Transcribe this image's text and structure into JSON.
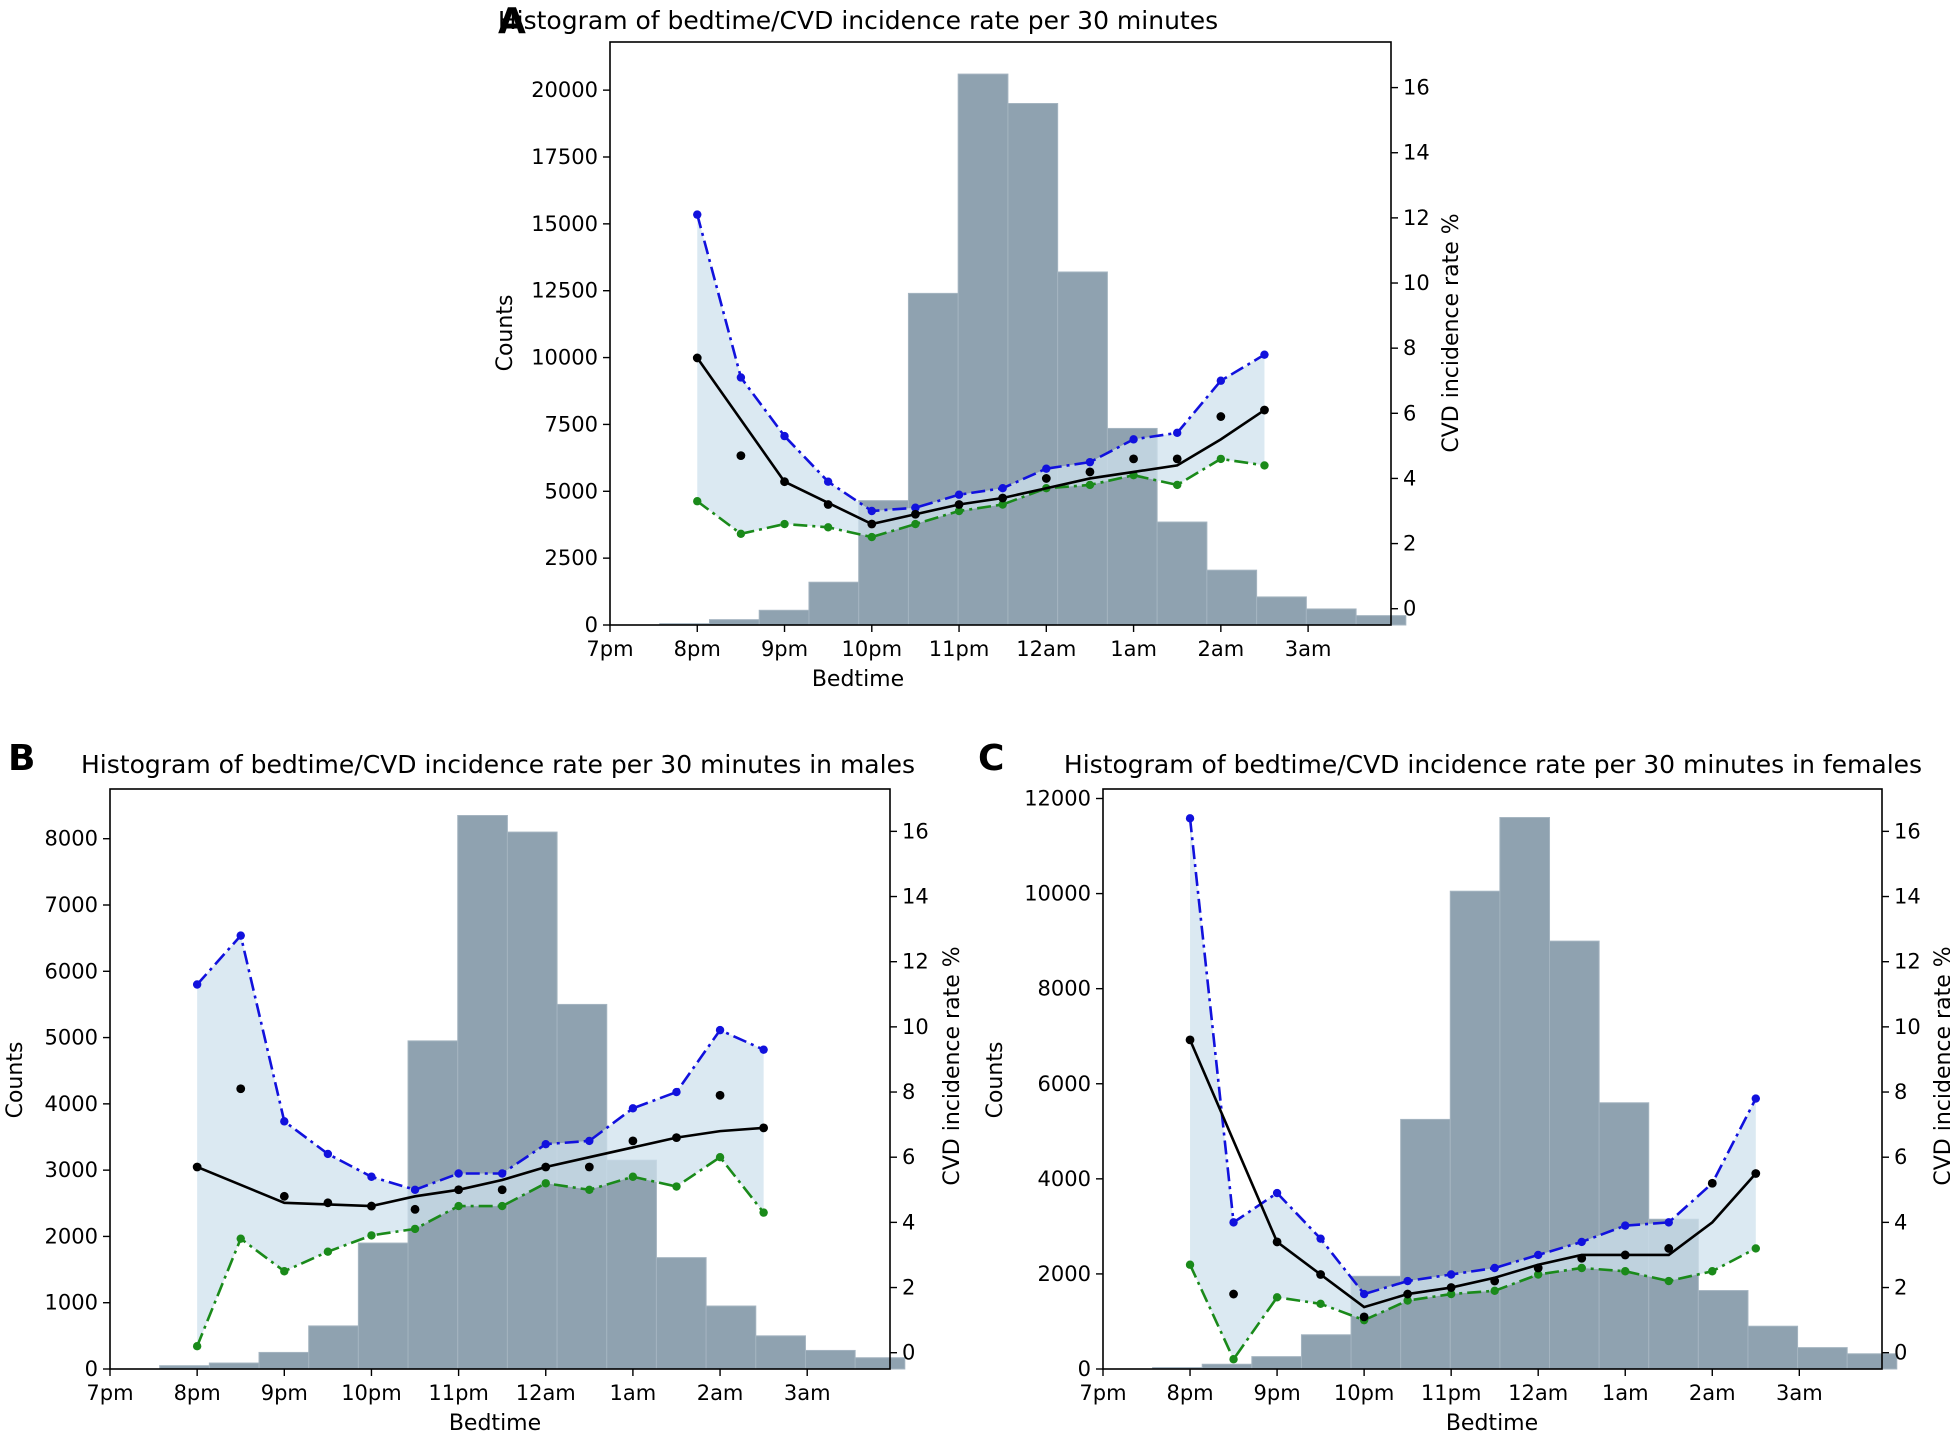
{
  "colors": {
    "bars": "#8fa2b0",
    "bar_edge": "#a4b4c0",
    "band": "#cfe1ee",
    "upper": "#1111dd",
    "lower": "#1a8a1a",
    "point": "#000000",
    "trend": "#000000"
  },
  "chart_data": [
    {
      "panel": "A",
      "type": "bar",
      "title": "Histogram of bedtime/CVD incidence rate per 30 minutes",
      "xlabel": "Bedtime",
      "ylabel": "Counts",
      "y2label": "CVD incidence rate %",
      "xticks": [
        "7pm",
        "8pm",
        "9pm",
        "10pm",
        "11pm",
        "12am",
        "1am",
        "2am",
        "3am"
      ],
      "xtick_hours": [
        19,
        20,
        21,
        22,
        23,
        24,
        25,
        26,
        27
      ],
      "xlim": [
        19,
        27.95
      ],
      "ylim": [
        0,
        21800
      ],
      "yticks": [
        0,
        2500,
        5000,
        7500,
        10000,
        12500,
        15000,
        17500,
        20000
      ],
      "y2lim": [
        -0.5,
        17.4
      ],
      "y2ticks": [
        0,
        2,
        4,
        6,
        8,
        10,
        12,
        14,
        16
      ],
      "bin_width": 0.57,
      "bin_starts": [
        19.0,
        19.57,
        20.14,
        20.71,
        21.28,
        21.85,
        22.42,
        22.99,
        23.56,
        24.13,
        24.7,
        25.27,
        25.84,
        26.41,
        26.98,
        27.55
      ],
      "counts": [
        0,
        50,
        200,
        550,
        1600,
        4650,
        12400,
        20600,
        19500,
        13200,
        7350,
        3850,
        2050,
        1050,
        600,
        350
      ],
      "rate_x": [
        20,
        20.5,
        21,
        21.5,
        22,
        22.5,
        23,
        23.5,
        24,
        24.5,
        25,
        25.5,
        26,
        26.5
      ],
      "point_rate": [
        7.7,
        4.7,
        3.9,
        3.2,
        2.6,
        2.9,
        3.2,
        3.4,
        4.0,
        4.2,
        4.6,
        4.6,
        5.9,
        6.1
      ],
      "upper_rate": [
        12.1,
        7.1,
        5.3,
        3.9,
        3.0,
        3.1,
        3.5,
        3.7,
        4.3,
        4.5,
        5.2,
        5.4,
        7.0,
        7.8
      ],
      "lower_rate": [
        3.3,
        2.3,
        2.6,
        2.5,
        2.2,
        2.6,
        3.0,
        3.2,
        3.7,
        3.8,
        4.1,
        3.8,
        4.6,
        4.4
      ],
      "trend_x": [
        20,
        21,
        22,
        22.5,
        23,
        23.5,
        24,
        24.5,
        25,
        25.5,
        26,
        26.5
      ],
      "trend_rate": [
        7.7,
        3.9,
        2.6,
        2.9,
        3.2,
        3.4,
        3.7,
        4.0,
        4.2,
        4.4,
        5.2,
        6.1
      ]
    },
    {
      "panel": "B",
      "type": "bar",
      "title": "Histogram of bedtime/CVD incidence rate per 30 minutes in males",
      "xlabel": "Bedtime",
      "ylabel": "Counts",
      "y2label": "CVD incidence rate %",
      "xticks": [
        "7pm",
        "8pm",
        "9pm",
        "10pm",
        "11pm",
        "12am",
        "1am",
        "2am",
        "3am"
      ],
      "xtick_hours": [
        19,
        20,
        21,
        22,
        23,
        24,
        25,
        26,
        27
      ],
      "xlim": [
        19,
        27.95
      ],
      "ylim": [
        0,
        8750
      ],
      "yticks": [
        0,
        1000,
        2000,
        3000,
        4000,
        5000,
        6000,
        7000,
        8000
      ],
      "y2lim": [
        -0.5,
        17.3
      ],
      "y2ticks": [
        0,
        2,
        4,
        6,
        8,
        10,
        12,
        14,
        16
      ],
      "bin_width": 0.57,
      "bin_starts": [
        19.0,
        19.57,
        20.14,
        20.71,
        21.28,
        21.85,
        22.42,
        22.99,
        23.56,
        24.13,
        24.7,
        25.27,
        25.84,
        26.41,
        26.98,
        27.55
      ],
      "counts": [
        0,
        50,
        90,
        250,
        650,
        1900,
        4950,
        8350,
        8100,
        5500,
        3150,
        1680,
        950,
        500,
        280,
        170
      ],
      "rate_x": [
        20,
        20.5,
        21,
        21.5,
        22,
        22.5,
        23,
        23.5,
        24,
        24.5,
        25,
        25.5,
        26,
        26.5
      ],
      "point_rate": [
        5.7,
        8.1,
        4.8,
        4.6,
        4.5,
        4.4,
        5.0,
        5.0,
        5.7,
        5.7,
        6.5,
        6.6,
        7.9,
        6.9
      ],
      "upper_rate": [
        11.3,
        12.8,
        7.1,
        6.1,
        5.4,
        5.0,
        5.5,
        5.5,
        6.4,
        6.5,
        7.5,
        8.0,
        9.9,
        9.3
      ],
      "lower_rate": [
        0.2,
        3.5,
        2.5,
        3.1,
        3.6,
        3.8,
        4.5,
        4.5,
        5.2,
        5.0,
        5.4,
        5.1,
        6.0,
        4.3
      ],
      "trend_x": [
        20,
        21,
        22,
        22.5,
        23,
        23.5,
        24,
        24.5,
        25,
        25.5,
        26,
        26.5
      ],
      "trend_rate": [
        5.7,
        4.6,
        4.5,
        4.8,
        5.0,
        5.3,
        5.7,
        6.0,
        6.3,
        6.6,
        6.8,
        6.9
      ]
    },
    {
      "panel": "C",
      "type": "bar",
      "title": "Histogram of bedtime/CVD incidence rate per 30 minutes in females",
      "xlabel": "Bedtime",
      "ylabel": "Counts",
      "y2label": "CVD incidence rate %",
      "xticks": [
        "7pm",
        "8pm",
        "9pm",
        "10pm",
        "11pm",
        "12am",
        "1am",
        "2am",
        "3am"
      ],
      "xtick_hours": [
        19,
        20,
        21,
        22,
        23,
        24,
        25,
        26,
        27
      ],
      "xlim": [
        19,
        27.95
      ],
      "ylim": [
        0,
        12200
      ],
      "yticks": [
        0,
        2000,
        4000,
        6000,
        8000,
        10000,
        12000
      ],
      "y2lim": [
        -0.5,
        17.3
      ],
      "y2ticks": [
        0,
        2,
        4,
        6,
        8,
        10,
        12,
        14,
        16
      ],
      "bin_width": 0.57,
      "bin_starts": [
        19.0,
        19.57,
        20.14,
        20.71,
        21.28,
        21.85,
        22.42,
        22.99,
        23.56,
        24.13,
        24.7,
        25.27,
        25.84,
        26.41,
        26.98,
        27.55
      ],
      "counts": [
        0,
        30,
        100,
        260,
        720,
        1950,
        5250,
        10050,
        11600,
        9000,
        5600,
        3150,
        1650,
        900,
        450,
        320
      ],
      "rate_x": [
        20,
        20.5,
        21,
        21.5,
        22,
        22.5,
        23,
        23.5,
        24,
        24.5,
        25,
        25.5,
        26,
        26.5
      ],
      "point_rate": [
        9.6,
        1.8,
        3.4,
        2.4,
        1.1,
        1.8,
        2.0,
        2.2,
        2.6,
        2.9,
        3.0,
        3.2,
        5.2,
        5.5
      ],
      "upper_rate": [
        16.4,
        4.0,
        4.9,
        3.5,
        1.8,
        2.2,
        2.4,
        2.6,
        3.0,
        3.4,
        3.9,
        4.0,
        5.2,
        7.8
      ],
      "lower_rate": [
        2.7,
        -0.2,
        1.7,
        1.5,
        1.0,
        1.6,
        1.8,
        1.9,
        2.4,
        2.6,
        2.5,
        2.2,
        2.5,
        3.2
      ],
      "trend_x": [
        20,
        21,
        22,
        22.5,
        23,
        23.5,
        24,
        24.5,
        25,
        25.5,
        26,
        26.5
      ],
      "trend_rate": [
        9.6,
        3.4,
        1.4,
        1.8,
        2.0,
        2.3,
        2.7,
        3.0,
        3.0,
        3.0,
        4.0,
        5.5
      ]
    }
  ]
}
